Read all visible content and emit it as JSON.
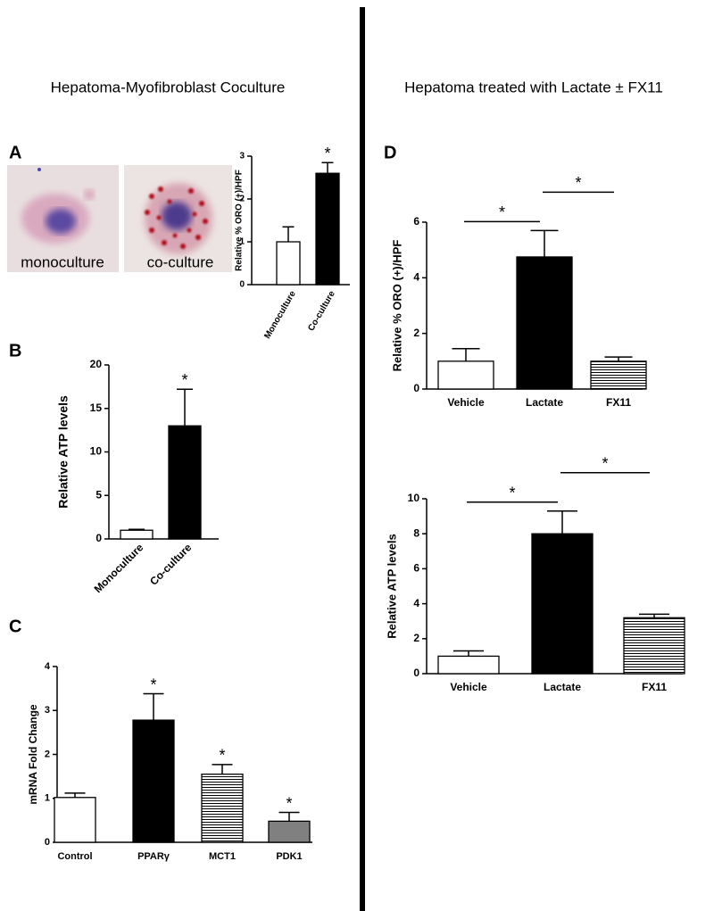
{
  "headers": {
    "left": "Hepatoma-Myofibroblast Coculture",
    "right": "Hepatoma treated with Lactate ± FX11"
  },
  "panel_labels": [
    "A",
    "B",
    "C",
    "D"
  ],
  "image_labels": [
    "monoculture",
    "co-culture"
  ],
  "chart_data": [
    {
      "type": "bar",
      "y_label": "Relative % ORO (+)/HPF",
      "categories": [
        "Monoculture",
        "Co-culture"
      ],
      "values": [
        1.0,
        2.6
      ],
      "errors": [
        0.35,
        0.25
      ],
      "colors": [
        "#ffffff",
        "#000000"
      ],
      "ylim": [
        0,
        3
      ],
      "yticks": [
        0,
        1,
        2,
        3
      ],
      "significance": [
        null,
        "*"
      ]
    },
    {
      "type": "bar",
      "y_label": "Relative ATP levels",
      "categories": [
        "Monoculture",
        "Co-culture"
      ],
      "values": [
        1.0,
        13.0
      ],
      "errors": [
        0.1,
        4.2
      ],
      "colors": [
        "#ffffff",
        "#000000"
      ],
      "ylim": [
        0,
        20
      ],
      "yticks": [
        0,
        5,
        10,
        15,
        20
      ],
      "significance": [
        null,
        "*"
      ]
    },
    {
      "type": "bar",
      "y_label": "mRNA Fold  Change",
      "categories": [
        "Control",
        "PPARγ",
        "MCT1",
        "PDK1"
      ],
      "values": [
        1.02,
        2.78,
        1.55,
        0.48
      ],
      "errors": [
        0.1,
        0.6,
        0.22,
        0.2
      ],
      "colors": [
        "#ffffff",
        "#000000",
        "stripes",
        "#808080"
      ],
      "ylim": [
        0,
        4
      ],
      "yticks": [
        0,
        1,
        2,
        3,
        4
      ],
      "significance": [
        null,
        "*",
        "*",
        "*"
      ]
    },
    {
      "type": "bar",
      "y_label": "Relative % ORO (+)/HPF",
      "categories": [
        "Vehicle",
        "Lactate",
        "FX11"
      ],
      "values": [
        1.0,
        4.75,
        1.0
      ],
      "errors": [
        0.45,
        0.95,
        0.15
      ],
      "colors": [
        "#ffffff",
        "#000000",
        "stripes"
      ],
      "ylim": [
        0,
        6
      ],
      "yticks": [
        0,
        2,
        4,
        6
      ],
      "comparisons": [
        {
          "label": "*",
          "between": [
            "Vehicle",
            "Lactate"
          ]
        },
        {
          "label": "*",
          "between": [
            "Lactate",
            "FX11"
          ]
        }
      ]
    },
    {
      "type": "bar",
      "y_label": "Relative ATP levels",
      "categories": [
        "Vehicle",
        "Lactate",
        "FX11"
      ],
      "values": [
        1.0,
        8.0,
        3.2
      ],
      "errors": [
        0.3,
        1.3,
        0.2
      ],
      "colors": [
        "#ffffff",
        "#000000",
        "stripes"
      ],
      "ylim": [
        0,
        10
      ],
      "yticks": [
        0,
        2,
        4,
        6,
        8,
        10
      ],
      "comparisons": [
        {
          "label": "*",
          "between": [
            "Vehicle",
            "Lactate"
          ]
        },
        {
          "label": "*",
          "between": [
            "Lactate",
            "FX11"
          ]
        }
      ]
    }
  ]
}
